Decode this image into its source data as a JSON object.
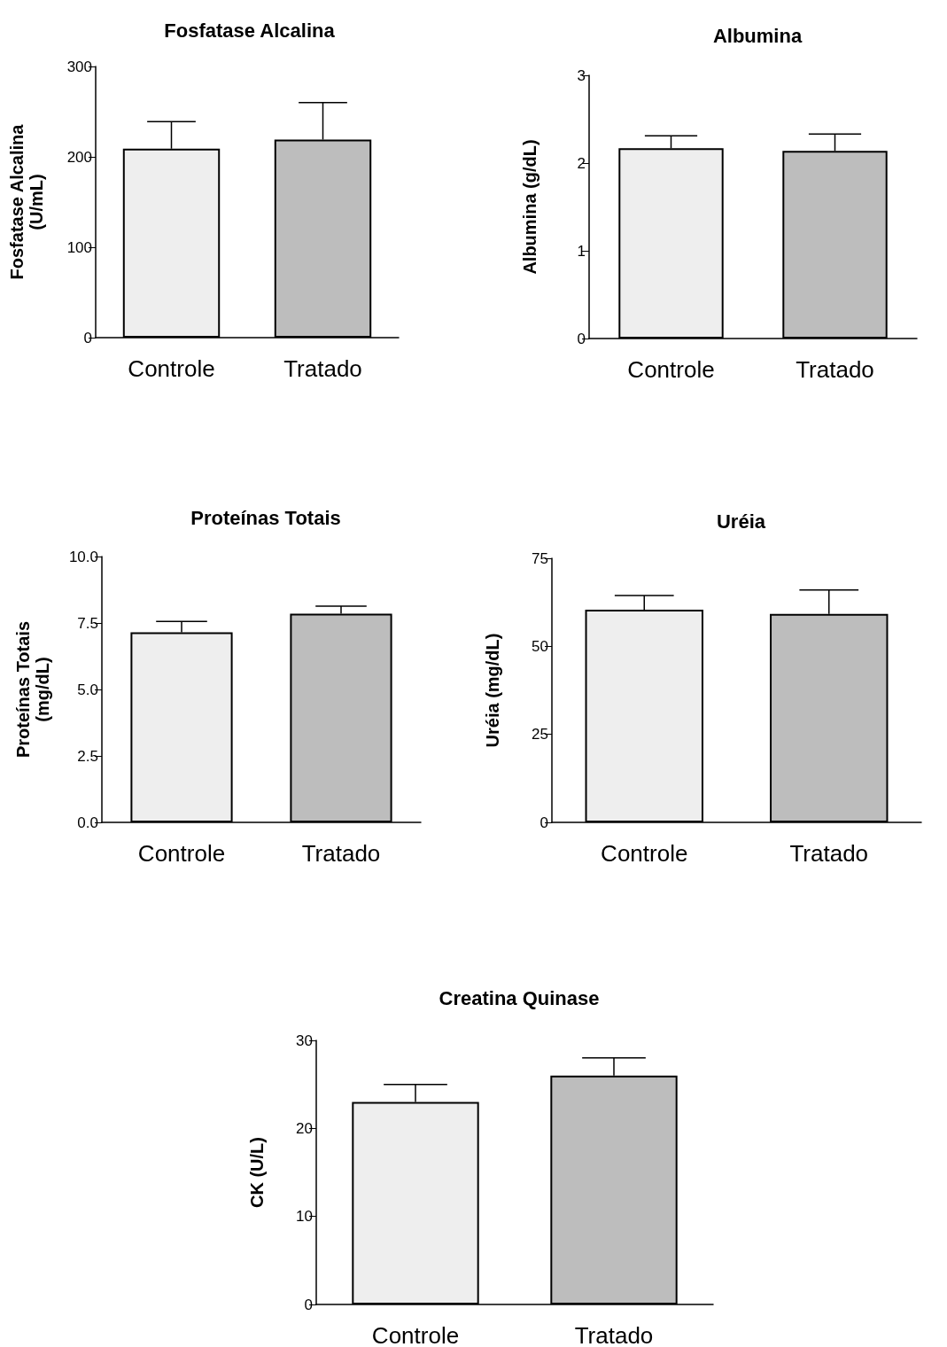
{
  "chart_data": [
    {
      "type": "bar",
      "title": "Fosfatase Alcalina",
      "ylabel": "Fosfatase Alcalina\n(U/mL)",
      "categories": [
        "Controle",
        "Tratado"
      ],
      "values": [
        209,
        219
      ],
      "errors": [
        30,
        41
      ],
      "colors": [
        "#eeeeee",
        "#bdbdbd"
      ],
      "ylim": [
        0,
        300
      ],
      "yticks": [
        0,
        100,
        200,
        300
      ],
      "grid": false
    },
    {
      "type": "bar",
      "title": "Albumina",
      "ylabel": "Albumina (g/dL)",
      "categories": [
        "Controle",
        "Tratado"
      ],
      "values": [
        2.17,
        2.14
      ],
      "errors": [
        0.14,
        0.19
      ],
      "colors": [
        "#eeeeee",
        "#bdbdbd"
      ],
      "ylim": [
        0,
        3
      ],
      "yticks": [
        0,
        1,
        2,
        3
      ],
      "grid": false
    },
    {
      "type": "bar",
      "title": "Proteínas Totais",
      "ylabel": "Proteínas Totais\n(mg/dL)",
      "categories": [
        "Controle",
        "Tratado"
      ],
      "values": [
        7.15,
        7.85
      ],
      "errors": [
        0.41,
        0.28
      ],
      "colors": [
        "#eeeeee",
        "#bdbdbd"
      ],
      "ylim": [
        0,
        10
      ],
      "yticks": [
        {
          "value": 0,
          "label": "0.0"
        },
        {
          "value": 2.5,
          "label": "2.5"
        },
        {
          "value": 5,
          "label": "5.0"
        },
        {
          "value": 7.5,
          "label": "7.5"
        },
        {
          "value": 10,
          "label": "10.0"
        }
      ],
      "grid": false
    },
    {
      "type": "bar",
      "title": "Uréia",
      "ylabel": "Uréia (mg/dL)",
      "categories": [
        "Controle",
        "Tratado"
      ],
      "values": [
        60.4,
        59.2
      ],
      "errors": [
        4,
        6.8
      ],
      "colors": [
        "#eeeeee",
        "#bdbdbd"
      ],
      "ylim": [
        0,
        75
      ],
      "yticks": [
        0,
        25,
        50,
        75
      ],
      "grid": false
    },
    {
      "type": "bar",
      "title": "Creatina Quinase",
      "ylabel": "CK (U/L)",
      "categories": [
        "Controle",
        "Tratado"
      ],
      "values": [
        23,
        26
      ],
      "errors": [
        2,
        2
      ],
      "colors": [
        "#eeeeee",
        "#bdbdbd"
      ],
      "ylim": [
        0,
        30
      ],
      "yticks": [
        0,
        10,
        20,
        30
      ],
      "grid": false
    }
  ]
}
